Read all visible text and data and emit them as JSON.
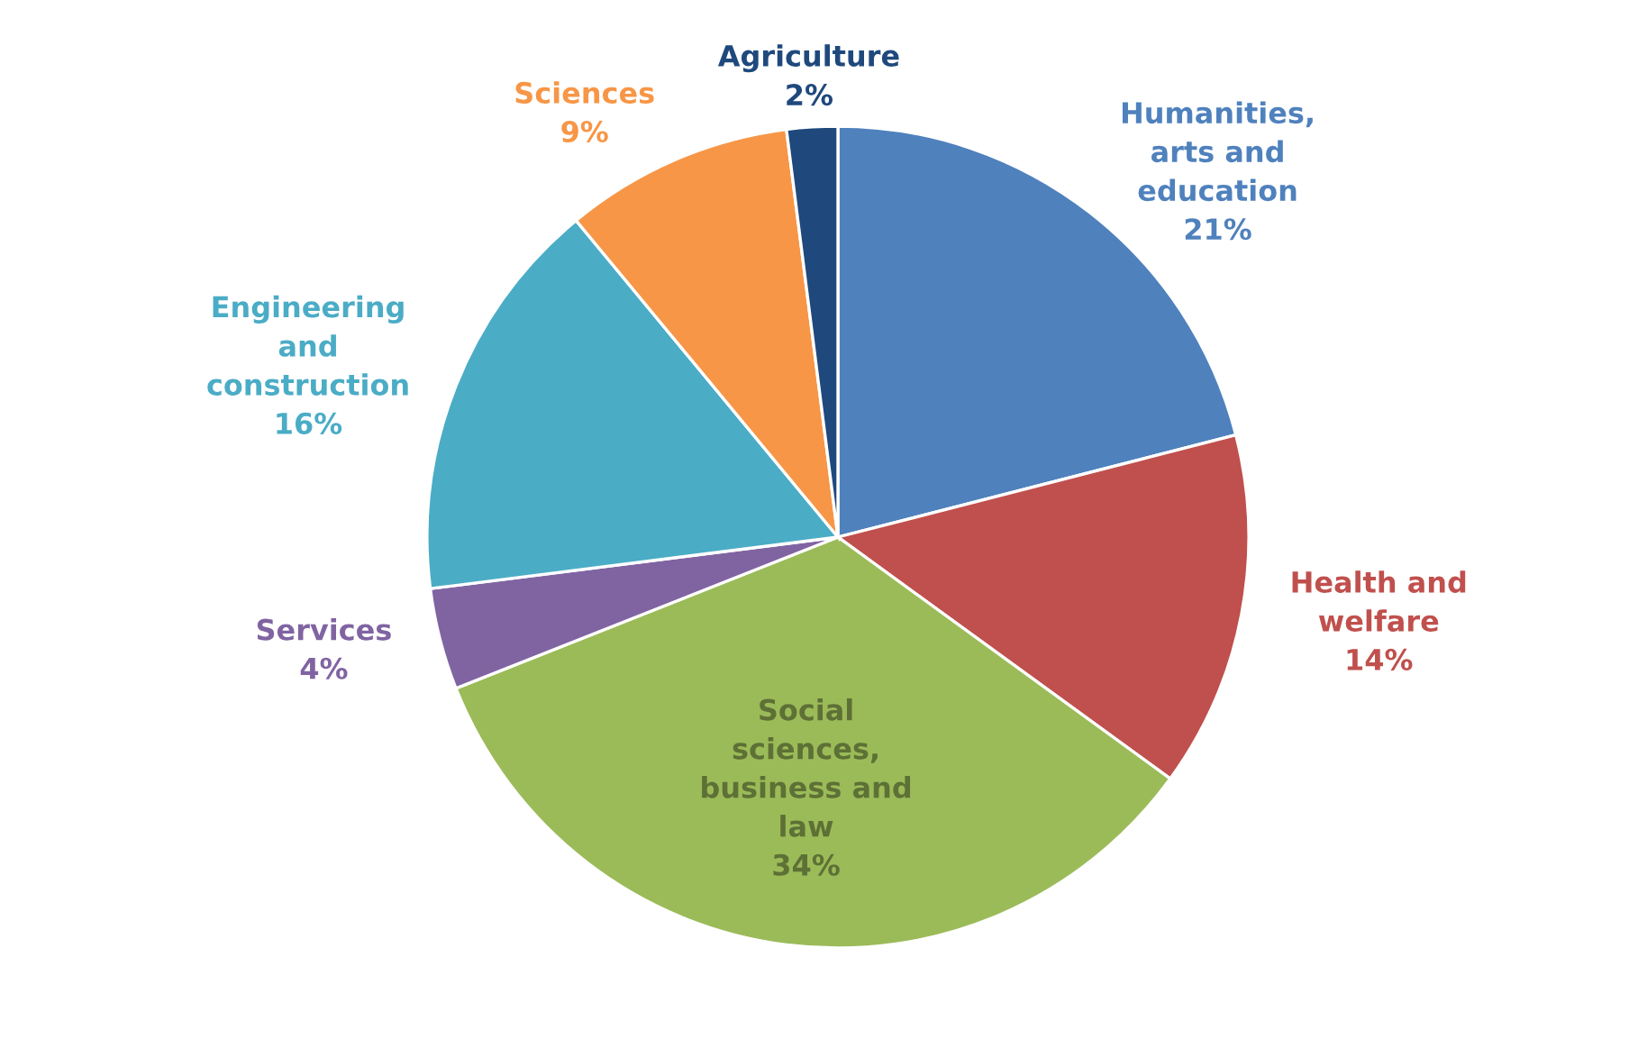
{
  "chart_data": {
    "type": "pie",
    "categories": [
      "Humanities,\narts and\neducation",
      "Health and\nwelfare",
      "Social\nsciences,\nbusiness and\nlaw",
      "Services",
      "Engineering\nand\nconstruction",
      "Sciences",
      "Agriculture"
    ],
    "values": [
      21,
      14,
      34,
      4,
      16,
      9,
      2
    ],
    "colors": [
      "#4f81bd",
      "#c0504d",
      "#9bbb59",
      "#8064a2",
      "#4bacc6",
      "#f79646",
      "#1f497d"
    ],
    "value_labels": [
      "21%",
      "14%",
      "34%",
      "4%",
      "16%",
      "9%",
      "2%"
    ],
    "legend": false
  }
}
